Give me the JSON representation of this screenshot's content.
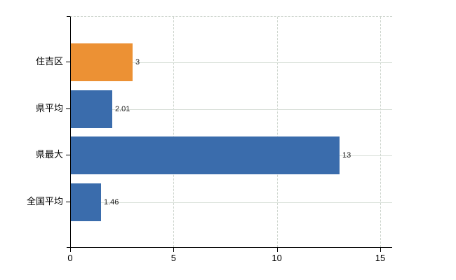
{
  "chart": {
    "background_color": "#ffffff",
    "axis_color": "#000000",
    "hgrid_color": "#d9e0d9",
    "vgrid_color": "#ccd4cc",
    "value_label_color": "#1a1a1a",
    "tick_label_color": "#000000"
  },
  "chart_data": {
    "type": "bar",
    "orientation": "horizontal",
    "title": "",
    "xlabel": "",
    "ylabel": "",
    "categories": [
      "住吉区",
      "県平均",
      "県最大",
      "全国平均"
    ],
    "values": [
      3,
      2.01,
      13,
      1.46
    ],
    "value_labels": [
      "3",
      "2.01",
      "13",
      "1.46"
    ],
    "bar_colors": [
      "#ec9134",
      "#3a6cac",
      "#3a6cac",
      "#3a6cac"
    ],
    "x_ticks": [
      0,
      5,
      10,
      15
    ],
    "x_tick_labels": [
      "0",
      "5",
      "10",
      "15"
    ],
    "xlim": [
      0,
      15.57
    ],
    "grid": true,
    "legend": false,
    "gridline_style": {
      "horizontal": "solid",
      "vertical": "dashed",
      "top_border": "dashed"
    }
  }
}
